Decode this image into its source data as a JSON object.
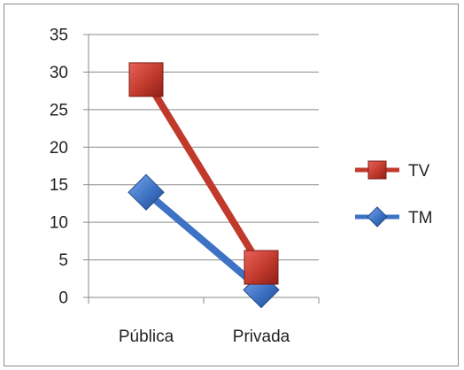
{
  "chart_data": {
    "type": "line",
    "categories": [
      "Pública",
      "Privada"
    ],
    "series": [
      {
        "name": "TV",
        "values": [
          29,
          4
        ],
        "color": "#c0392b",
        "marker": "square"
      },
      {
        "name": "TM",
        "values": [
          14,
          1
        ],
        "color": "#3d72c4",
        "marker": "diamond"
      }
    ],
    "y_ticks": [
      "0",
      "5",
      "10",
      "15",
      "20",
      "25",
      "30",
      "35"
    ],
    "ylim": [
      0,
      35
    ],
    "grid": "horizontal",
    "legend_position": "right"
  }
}
